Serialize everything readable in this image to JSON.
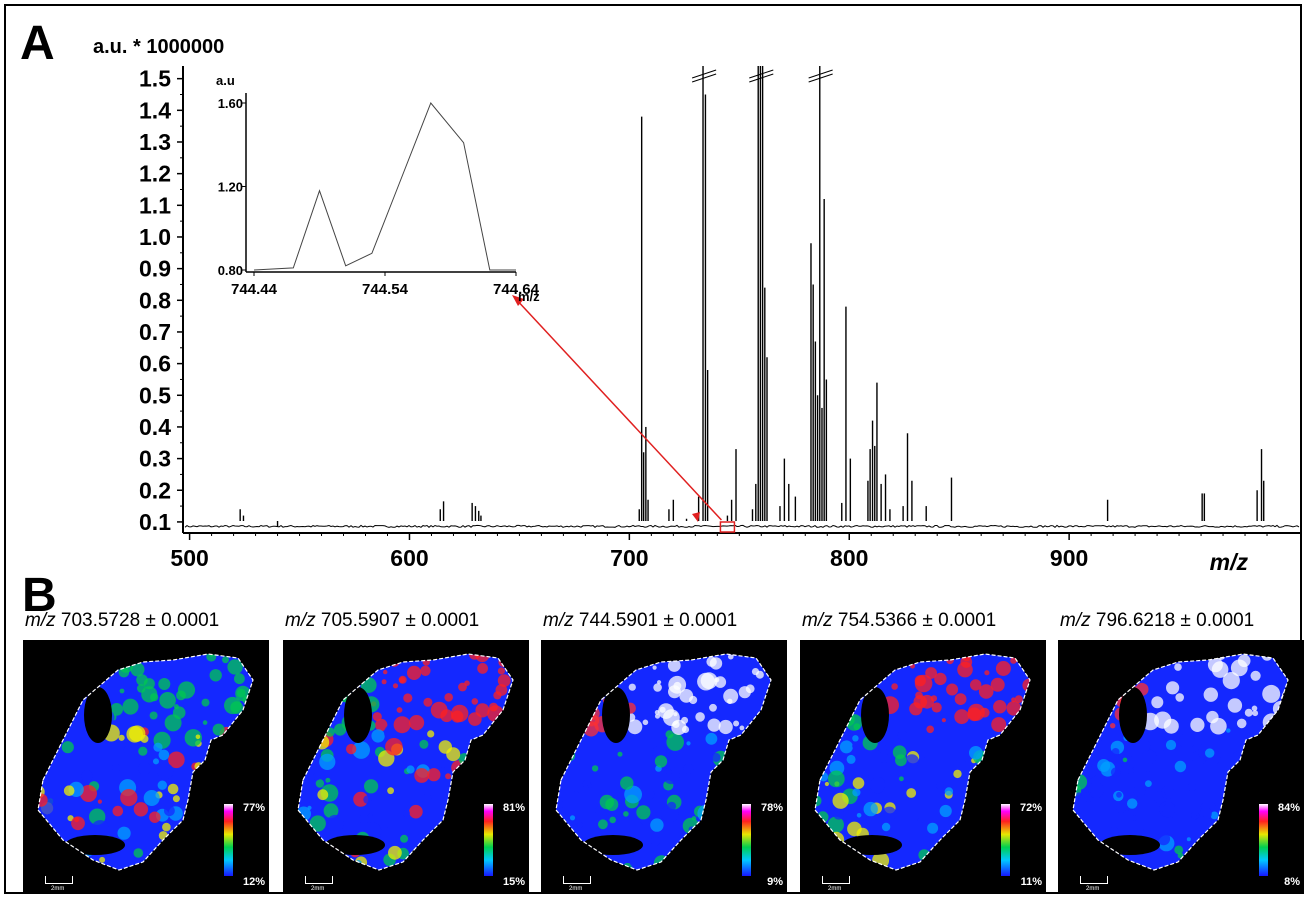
{
  "panel_a_label": "A",
  "panel_b_label": "B",
  "chart_data": [
    {
      "type": "line",
      "ylabel": "a.u. * 1000000",
      "xlabel": "m/z",
      "xlim": [
        497,
        1005
      ],
      "ylim": [
        0.065,
        1.54
      ],
      "x_ticks": [
        "500",
        "600",
        "700",
        "800",
        "900"
      ],
      "y_ticks": [
        "0.1",
        "0.2",
        "0.3",
        "0.4",
        "0.5",
        "0.6",
        "0.7",
        "0.8",
        "0.9",
        "1.0",
        "1.1",
        "1.2",
        "1.3",
        "1.4",
        "1.5"
      ],
      "peaks": [
        {
          "x": 523.0,
          "y": 0.14
        },
        {
          "x": 524.5,
          "y": 0.12
        },
        {
          "x": 540,
          "y": 0.085
        },
        {
          "x": 614,
          "y": 0.14
        },
        {
          "x": 615.5,
          "y": 0.165
        },
        {
          "x": 628.5,
          "y": 0.16
        },
        {
          "x": 630,
          "y": 0.15
        },
        {
          "x": 631.5,
          "y": 0.135
        },
        {
          "x": 632.5,
          "y": 0.12
        },
        {
          "x": 704.5,
          "y": 0.14
        },
        {
          "x": 705.6,
          "y": 1.38
        },
        {
          "x": 706.5,
          "y": 0.32
        },
        {
          "x": 707.5,
          "y": 0.4
        },
        {
          "x": 708.5,
          "y": 0.17
        },
        {
          "x": 718,
          "y": 0.14
        },
        {
          "x": 720,
          "y": 0.17
        },
        {
          "x": 726,
          "y": 0.11
        },
        {
          "x": 731.5,
          "y": 0.18
        },
        {
          "x": 733.5,
          "y": 1.6
        },
        {
          "x": 734.6,
          "y": 1.45
        },
        {
          "x": 735.6,
          "y": 0.58
        },
        {
          "x": 744.6,
          "y": 0.12
        },
        {
          "x": 746.5,
          "y": 0.17
        },
        {
          "x": 748.5,
          "y": 0.33
        },
        {
          "x": 756,
          "y": 0.14
        },
        {
          "x": 757.5,
          "y": 0.22
        },
        {
          "x": 758.6,
          "y": 1.6
        },
        {
          "x": 759.6,
          "y": 1.6
        },
        {
          "x": 760.6,
          "y": 1.6
        },
        {
          "x": 761.6,
          "y": 0.84
        },
        {
          "x": 762.6,
          "y": 0.62
        },
        {
          "x": 768.5,
          "y": 0.15
        },
        {
          "x": 770.5,
          "y": 0.3
        },
        {
          "x": 772.5,
          "y": 0.22
        },
        {
          "x": 775.5,
          "y": 0.18
        },
        {
          "x": 782.6,
          "y": 0.98
        },
        {
          "x": 783.6,
          "y": 0.85
        },
        {
          "x": 784.6,
          "y": 0.67
        },
        {
          "x": 785.6,
          "y": 0.5
        },
        {
          "x": 786.6,
          "y": 1.6
        },
        {
          "x": 787.6,
          "y": 0.46
        },
        {
          "x": 788.6,
          "y": 1.12
        },
        {
          "x": 789.6,
          "y": 0.55
        },
        {
          "x": 796.6,
          "y": 0.16
        },
        {
          "x": 798.5,
          "y": 0.78
        },
        {
          "x": 800.5,
          "y": 0.3
        },
        {
          "x": 808.5,
          "y": 0.23
        },
        {
          "x": 809.5,
          "y": 0.33
        },
        {
          "x": 810.6,
          "y": 0.42
        },
        {
          "x": 811.6,
          "y": 0.34
        },
        {
          "x": 812.6,
          "y": 0.54
        },
        {
          "x": 814.5,
          "y": 0.22
        },
        {
          "x": 816.5,
          "y": 0.25
        },
        {
          "x": 818.5,
          "y": 0.14
        },
        {
          "x": 824.5,
          "y": 0.15
        },
        {
          "x": 826.5,
          "y": 0.38
        },
        {
          "x": 828.5,
          "y": 0.23
        },
        {
          "x": 835,
          "y": 0.15
        },
        {
          "x": 846.5,
          "y": 0.24
        },
        {
          "x": 917.5,
          "y": 0.17
        },
        {
          "x": 960.5,
          "y": 0.19
        },
        {
          "x": 961.5,
          "y": 0.19
        },
        {
          "x": 985.5,
          "y": 0.2
        },
        {
          "x": 987.5,
          "y": 0.33
        },
        {
          "x": 988.5,
          "y": 0.23
        }
      ],
      "inset": {
        "ylabel": "a.u",
        "xlabel": "m/z",
        "x_ticks": [
          "744.44",
          "744.54",
          "744.64"
        ],
        "y_ticks": [
          "0.80",
          "1.20",
          "1.60"
        ],
        "x": [
          744.44,
          744.47,
          744.49,
          744.51,
          744.53,
          744.55,
          744.575,
          744.6,
          744.62,
          744.64
        ],
        "y": [
          0.8,
          0.81,
          1.18,
          0.82,
          0.88,
          1.2,
          1.6,
          1.41,
          0.8,
          0.8
        ]
      }
    }
  ],
  "ion_images": [
    {
      "mz_label": "m/z",
      "value": "703.5728 ± 0.0001",
      "max": "77%",
      "min": "12%",
      "scale": "2mm"
    },
    {
      "mz_label": "m/z",
      "value": "705.5907 ± 0.0001",
      "max": "81%",
      "min": "15%",
      "scale": "2mm"
    },
    {
      "mz_label": "m/z",
      "value": "744.5901 ± 0.0001",
      "max": "78%",
      "min": "9%",
      "scale": "2mm"
    },
    {
      "mz_label": "m/z",
      "value": "754.5366 ± 0.0001",
      "max": "72%",
      "min": "11%",
      "scale": "2mm"
    },
    {
      "mz_label": "m/z",
      "value": "796.6218 ± 0.0001",
      "max": "84%",
      "min": "8%",
      "scale": "2mm"
    }
  ],
  "colors": {
    "spectrum": "#000000",
    "pointer": "#e02020"
  }
}
